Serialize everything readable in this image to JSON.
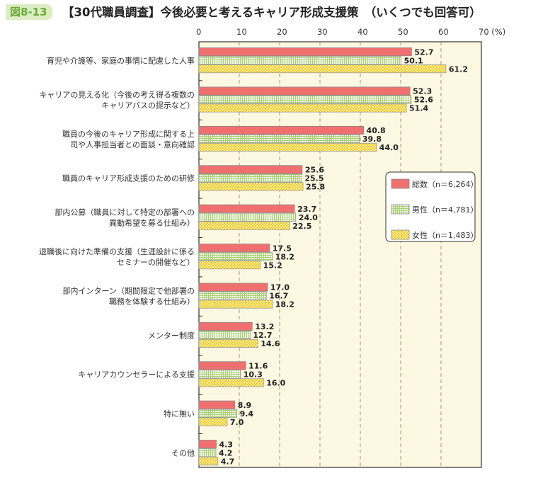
{
  "figure_label": "図8-13",
  "title": "【30代職員調査】今後必要と考えるキャリア形成支援策　（いくつでも回答可）",
  "chart_data": {
    "type": "bar",
    "orientation": "horizontal",
    "title": "【30代職員調査】今後必要と考えるキャリア形成支援策　（いくつでも回答可）",
    "unit_label": "(%)",
    "xlim": [
      0,
      70
    ],
    "ticks": [
      0,
      10,
      20,
      30,
      40,
      50,
      60,
      70
    ],
    "grid": true,
    "legend_position": "right",
    "categories": [
      [
        "育児や介護等、家庭の事情に配慮した人事"
      ],
      [
        "キャリアの見える化（今後の考え得る複数の",
        "キャリアパスの提示など）"
      ],
      [
        "職員の今後のキャリア形成に関する上",
        "司や人事担当者との面談・意向確認"
      ],
      [
        "職員のキャリア形成支援のための研修"
      ],
      [
        "部内公募（職員に対して特定の部署への",
        "異動希望を募る仕組み）"
      ],
      [
        "退職後に向けた準備の支援（生涯設計に係る",
        "セミナーの開催など）"
      ],
      [
        "部内インターン（期間限定で他部署の",
        "職務を体験する仕組み）"
      ],
      [
        "メンター制度"
      ],
      [
        "キャリアカウンセラーによる支援"
      ],
      [
        "特に無い"
      ],
      [
        "その他"
      ]
    ],
    "series": [
      {
        "name": "総数（n＝6,264）",
        "color": "#f07070",
        "pattern": "solid",
        "values": [
          52.7,
          52.3,
          40.8,
          25.6,
          23.7,
          17.5,
          17.0,
          13.2,
          11.6,
          8.9,
          4.3
        ]
      },
      {
        "name": "男性（n＝4,781）",
        "color": "#a8d070",
        "pattern": "grid",
        "values": [
          50.1,
          52.6,
          39.8,
          25.5,
          24.0,
          18.2,
          16.7,
          12.7,
          10.3,
          9.4,
          4.2
        ]
      },
      {
        "name": "女性（n＝1,483）",
        "color": "#f5c518",
        "pattern": "checker",
        "values": [
          61.2,
          51.4,
          44.0,
          25.8,
          22.5,
          15.2,
          18.2,
          14.6,
          16.0,
          7.0,
          4.7
        ]
      }
    ]
  }
}
